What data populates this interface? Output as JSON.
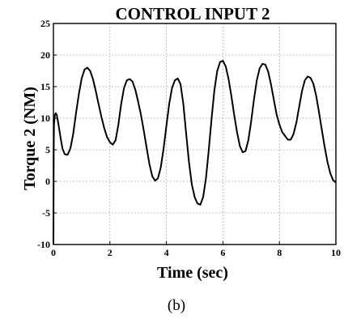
{
  "chart_data": {
    "type": "line",
    "title": "CONTROL INPUT 2",
    "xlabel": "Time (sec)",
    "ylabel": "Torque 2 (NM)",
    "xlim": [
      0,
      10
    ],
    "ylim": [
      -10,
      25
    ],
    "grid": true,
    "xticks": [
      0,
      2,
      4,
      6,
      8,
      10
    ],
    "yticks": [
      -10,
      -5,
      0,
      5,
      10,
      15,
      20,
      25
    ],
    "xtick_labels": [
      "0",
      "2",
      "4",
      "6",
      "8",
      "10"
    ],
    "ytick_labels": [
      "-10",
      "-5",
      "0",
      "5",
      "10",
      "15",
      "20",
      "25"
    ],
    "series": [
      {
        "x": [
          0,
          0.01,
          0.02,
          0.05,
          0.08,
          0.12,
          0.18,
          0.25,
          0.32,
          0.4,
          0.5,
          0.6,
          0.7,
          0.8,
          0.9,
          1.0,
          1.1,
          1.2,
          1.3,
          1.4,
          1.5,
          1.6,
          1.7,
          1.8,
          1.9,
          2.0,
          2.1,
          2.2,
          2.3,
          2.4,
          2.5,
          2.6,
          2.7,
          2.8,
          2.9,
          3.0,
          3.1,
          3.2,
          3.3,
          3.4,
          3.5,
          3.6,
          3.7,
          3.8,
          3.9,
          4.0,
          4.1,
          4.2,
          4.3,
          4.4,
          4.5,
          4.6,
          4.7,
          4.8,
          4.9,
          5.0,
          5.1,
          5.2,
          5.3,
          5.4,
          5.5,
          5.6,
          5.7,
          5.8,
          5.9,
          6.0,
          6.1,
          6.2,
          6.3,
          6.4,
          6.5,
          6.6,
          6.7,
          6.8,
          6.9,
          7.0,
          7.1,
          7.2,
          7.3,
          7.4,
          7.5,
          7.6,
          7.7,
          7.8,
          7.9,
          8.0,
          8.1,
          8.2,
          8.3,
          8.4,
          8.5,
          8.6,
          8.7,
          8.8,
          8.9,
          9.0,
          9.1,
          9.2,
          9.3,
          9.4,
          9.5,
          9.6,
          9.7,
          9.8,
          9.9,
          10.0
        ],
        "y": [
          -10,
          5,
          9,
          10.5,
          10.8,
          10.5,
          9,
          7,
          5.2,
          4.3,
          4.2,
          5.2,
          7.5,
          10.8,
          13.8,
          16.3,
          17.7,
          18,
          17.5,
          16.2,
          14.3,
          12.2,
          10.2,
          8.4,
          7,
          6.2,
          5.8,
          6.5,
          9,
          12.3,
          14.8,
          16,
          16.2,
          15.8,
          14.5,
          12.6,
          10.5,
          8,
          5.3,
          2.7,
          0.8,
          0.1,
          0.5,
          2.2,
          5.2,
          8.8,
          12.3,
          14.8,
          16,
          16.3,
          15.4,
          12.2,
          7.5,
          3,
          -0.5,
          -2.5,
          -3.5,
          -3.7,
          -2.5,
          0.5,
          5,
          10,
          14.5,
          17.5,
          18.9,
          19.1,
          18.2,
          16.2,
          13.5,
          10.5,
          7.8,
          5.6,
          4.6,
          4.8,
          6.5,
          9.5,
          13,
          16,
          17.9,
          18.6,
          18.5,
          17.4,
          15.4,
          13,
          10.6,
          9,
          7.8,
          7.2,
          6.6,
          6.6,
          7.5,
          9.3,
          11.8,
          14.3,
          16,
          16.6,
          16.4,
          15.5,
          13.6,
          11,
          8.2,
          5.5,
          3.1,
          1.3,
          0.2,
          -0.2
        ]
      }
    ]
  },
  "caption": "(b)"
}
